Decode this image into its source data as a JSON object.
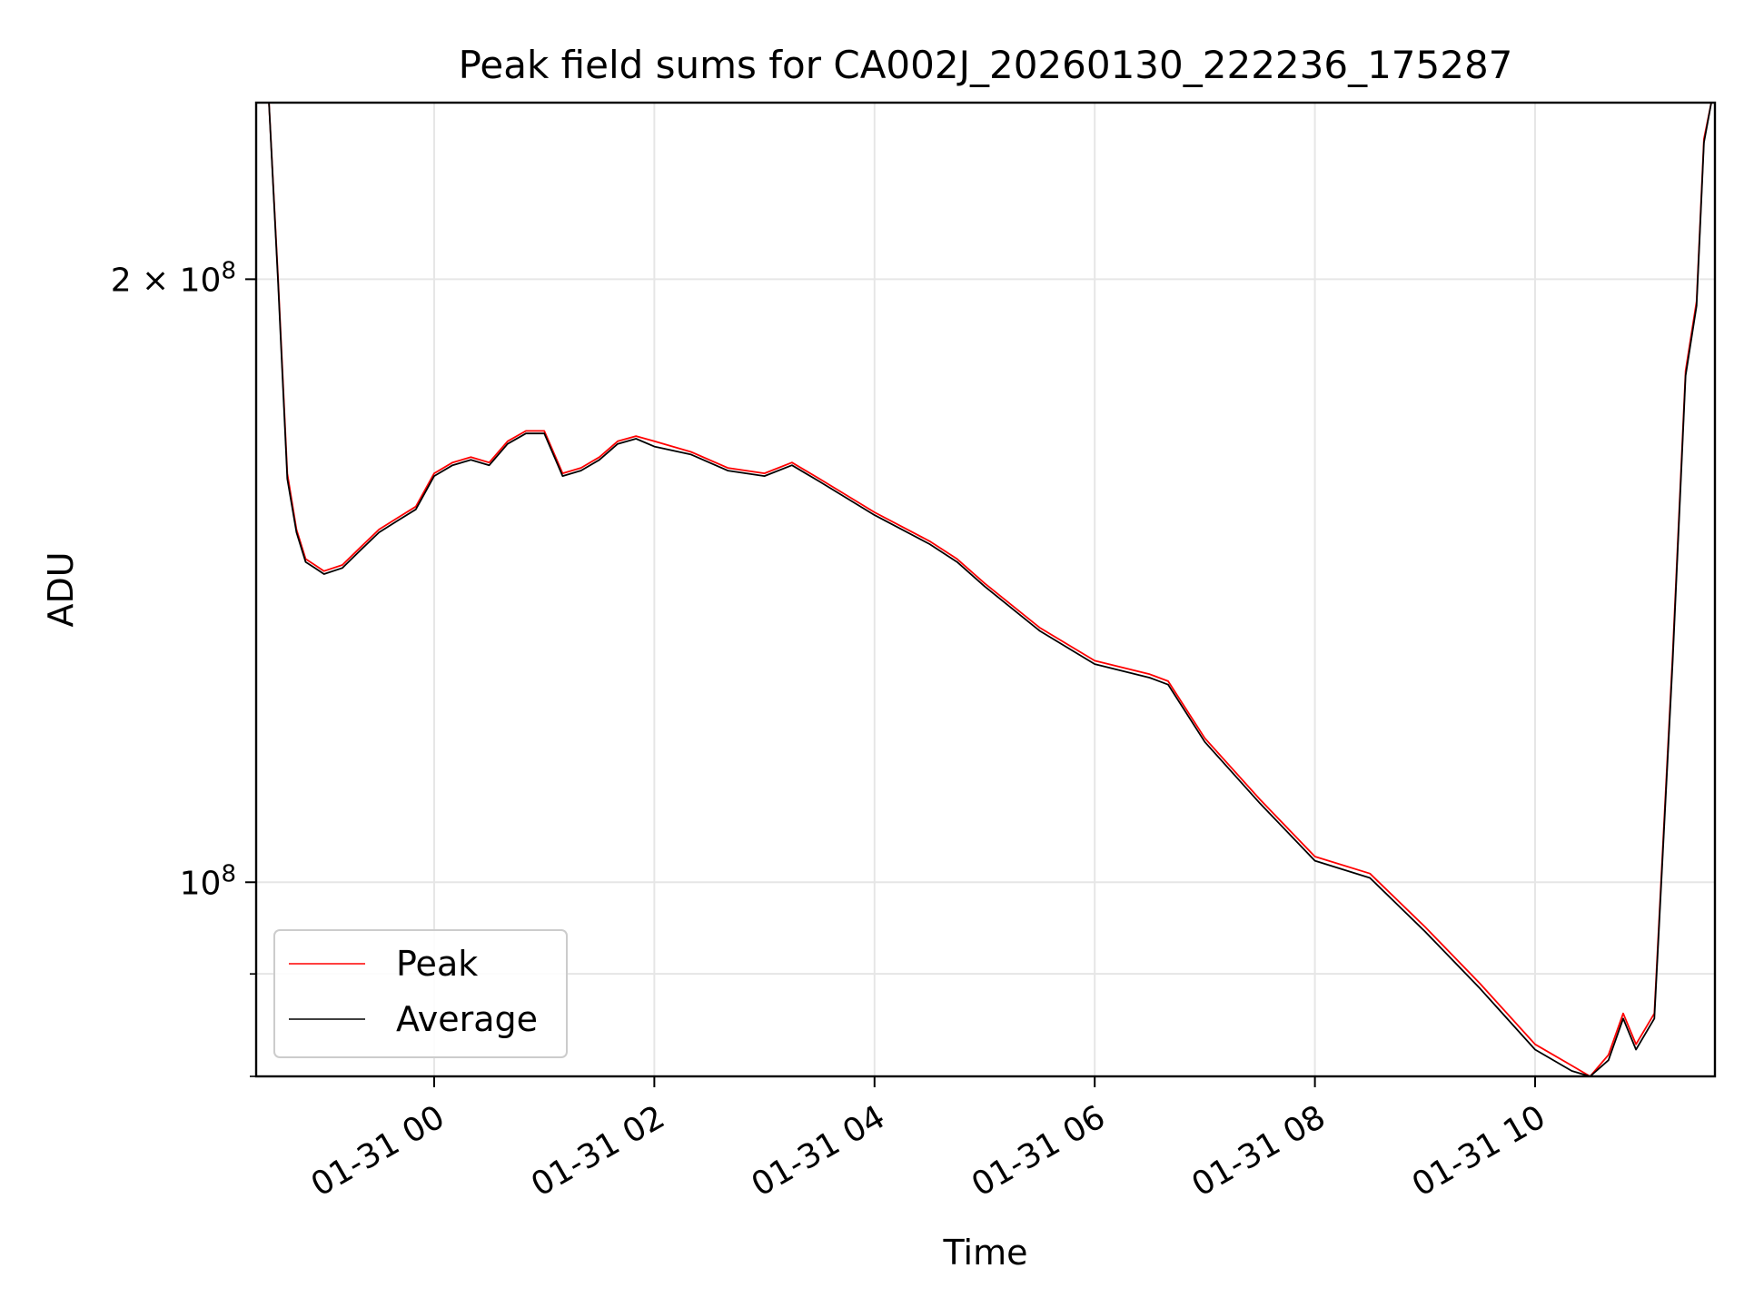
{
  "chart_data": {
    "type": "line",
    "title": "Peak field sums for CA002J_20260130_222236_175287",
    "xlabel": "Time",
    "ylabel": "ADU",
    "y_scale": "log",
    "grid": true,
    "legend_position": "lower-left",
    "xlim": [
      "2026-01-30 22:23",
      "2026-01-31 11:38"
    ],
    "ylim": [
      80000000,
      245000000
    ],
    "x_ticks": [
      "01-31 00",
      "01-31 02",
      "01-31 04",
      "01-31 06",
      "01-31 08",
      "01-31 10"
    ],
    "y_ticks": [
      {
        "value": 100000000,
        "base": "10",
        "exp": "8",
        "mult": ""
      },
      {
        "value": 200000000,
        "base": "10",
        "exp": "8",
        "mult": "2 × "
      }
    ],
    "y_minor_ticks": [
      80000000,
      90000000
    ],
    "series": [
      {
        "name": "Peak",
        "color": "#ff0000",
        "x": [
          "2026-01-30 22:24",
          "2026-01-30 22:30",
          "2026-01-30 22:35",
          "2026-01-30 22:40",
          "2026-01-30 22:45",
          "2026-01-30 22:50",
          "2026-01-30 22:55",
          "2026-01-30 23:00",
          "2026-01-30 23:10",
          "2026-01-30 23:20",
          "2026-01-30 23:30",
          "2026-01-30 23:40",
          "2026-01-30 23:50",
          "2026-01-31 00:00",
          "2026-01-31 00:10",
          "2026-01-31 00:20",
          "2026-01-31 00:30",
          "2026-01-31 00:40",
          "2026-01-31 00:50",
          "2026-01-31 01:00",
          "2026-01-31 01:10",
          "2026-01-31 01:20",
          "2026-01-31 01:30",
          "2026-01-31 01:40",
          "2026-01-31 01:50",
          "2026-01-31 02:00",
          "2026-01-31 02:20",
          "2026-01-31 02:40",
          "2026-01-31 03:00",
          "2026-01-31 03:15",
          "2026-01-31 03:30",
          "2026-01-31 04:00",
          "2026-01-31 04:30",
          "2026-01-31 04:45",
          "2026-01-31 05:00",
          "2026-01-31 05:30",
          "2026-01-31 06:00",
          "2026-01-31 06:30",
          "2026-01-31 06:40",
          "2026-01-31 07:00",
          "2026-01-31 07:30",
          "2026-01-31 08:00",
          "2026-01-31 08:30",
          "2026-01-31 09:00",
          "2026-01-31 09:30",
          "2026-01-31 10:00",
          "2026-01-31 10:20",
          "2026-01-31 10:30",
          "2026-01-31 10:40",
          "2026-01-31 10:48",
          "2026-01-31 10:55",
          "2026-01-31 11:05",
          "2026-01-31 11:15",
          "2026-01-31 11:22",
          "2026-01-31 11:28",
          "2026-01-31 11:32",
          "2026-01-31 11:36"
        ],
        "y": [
          245000000,
          245000000,
          200000000,
          160000000,
          150000000,
          145000000,
          144000000,
          143000000,
          144000000,
          147000000,
          150000000,
          152000000,
          154000000,
          160000000,
          162000000,
          163000000,
          162000000,
          166000000,
          168000000,
          168000000,
          160000000,
          161000000,
          163000000,
          166000000,
          167000000,
          166000000,
          164000000,
          161000000,
          160000000,
          162000000,
          159000000,
          153000000,
          148000000,
          145000000,
          141000000,
          134000000,
          129000000,
          127000000,
          126000000,
          118000000,
          110000000,
          103000000,
          101000000,
          95000000,
          89000000,
          83000000,
          81000000,
          80000000,
          82000000,
          86000000,
          83000000,
          86000000,
          130000000,
          180000000,
          195000000,
          235000000,
          245000000
        ]
      },
      {
        "name": "Average",
        "color": "#000000",
        "x": [
          "2026-01-30 22:24",
          "2026-01-30 22:30",
          "2026-01-30 22:35",
          "2026-01-30 22:40",
          "2026-01-30 22:45",
          "2026-01-30 22:50",
          "2026-01-30 22:55",
          "2026-01-30 23:00",
          "2026-01-30 23:10",
          "2026-01-30 23:20",
          "2026-01-30 23:30",
          "2026-01-30 23:40",
          "2026-01-30 23:50",
          "2026-01-31 00:00",
          "2026-01-31 00:10",
          "2026-01-31 00:20",
          "2026-01-31 00:30",
          "2026-01-31 00:40",
          "2026-01-31 00:50",
          "2026-01-31 01:00",
          "2026-01-31 01:10",
          "2026-01-31 01:20",
          "2026-01-31 01:30",
          "2026-01-31 01:40",
          "2026-01-31 01:50",
          "2026-01-31 02:00",
          "2026-01-31 02:20",
          "2026-01-31 02:40",
          "2026-01-31 03:00",
          "2026-01-31 03:15",
          "2026-01-31 03:30",
          "2026-01-31 04:00",
          "2026-01-31 04:30",
          "2026-01-31 04:45",
          "2026-01-31 05:00",
          "2026-01-31 05:30",
          "2026-01-31 06:00",
          "2026-01-31 06:30",
          "2026-01-31 06:40",
          "2026-01-31 07:00",
          "2026-01-31 07:30",
          "2026-01-31 08:00",
          "2026-01-31 08:30",
          "2026-01-31 09:00",
          "2026-01-31 09:30",
          "2026-01-31 10:00",
          "2026-01-31 10:20",
          "2026-01-31 10:30",
          "2026-01-31 10:40",
          "2026-01-31 10:48",
          "2026-01-31 10:55",
          "2026-01-31 11:05",
          "2026-01-31 11:15",
          "2026-01-31 11:22",
          "2026-01-31 11:28",
          "2026-01-31 11:32",
          "2026-01-31 11:36"
        ],
        "y": [
          245000000,
          245000000,
          199000000,
          159000000,
          149500000,
          144500000,
          143500000,
          142500000,
          143500000,
          146500000,
          149500000,
          151500000,
          153500000,
          159500000,
          161500000,
          162500000,
          161500000,
          165500000,
          167500000,
          167500000,
          159500000,
          160500000,
          162500000,
          165500000,
          166500000,
          165000000,
          163500000,
          160500000,
          159500000,
          161500000,
          158500000,
          152500000,
          147500000,
          144500000,
          140500000,
          133500000,
          128500000,
          126500000,
          125500000,
          117500000,
          109500000,
          102500000,
          100500000,
          94500000,
          88500000,
          82500000,
          80500000,
          79500000,
          81500000,
          85500000,
          82500000,
          85500000,
          129000000,
          179000000,
          194000000,
          234000000,
          245000000
        ]
      }
    ]
  }
}
